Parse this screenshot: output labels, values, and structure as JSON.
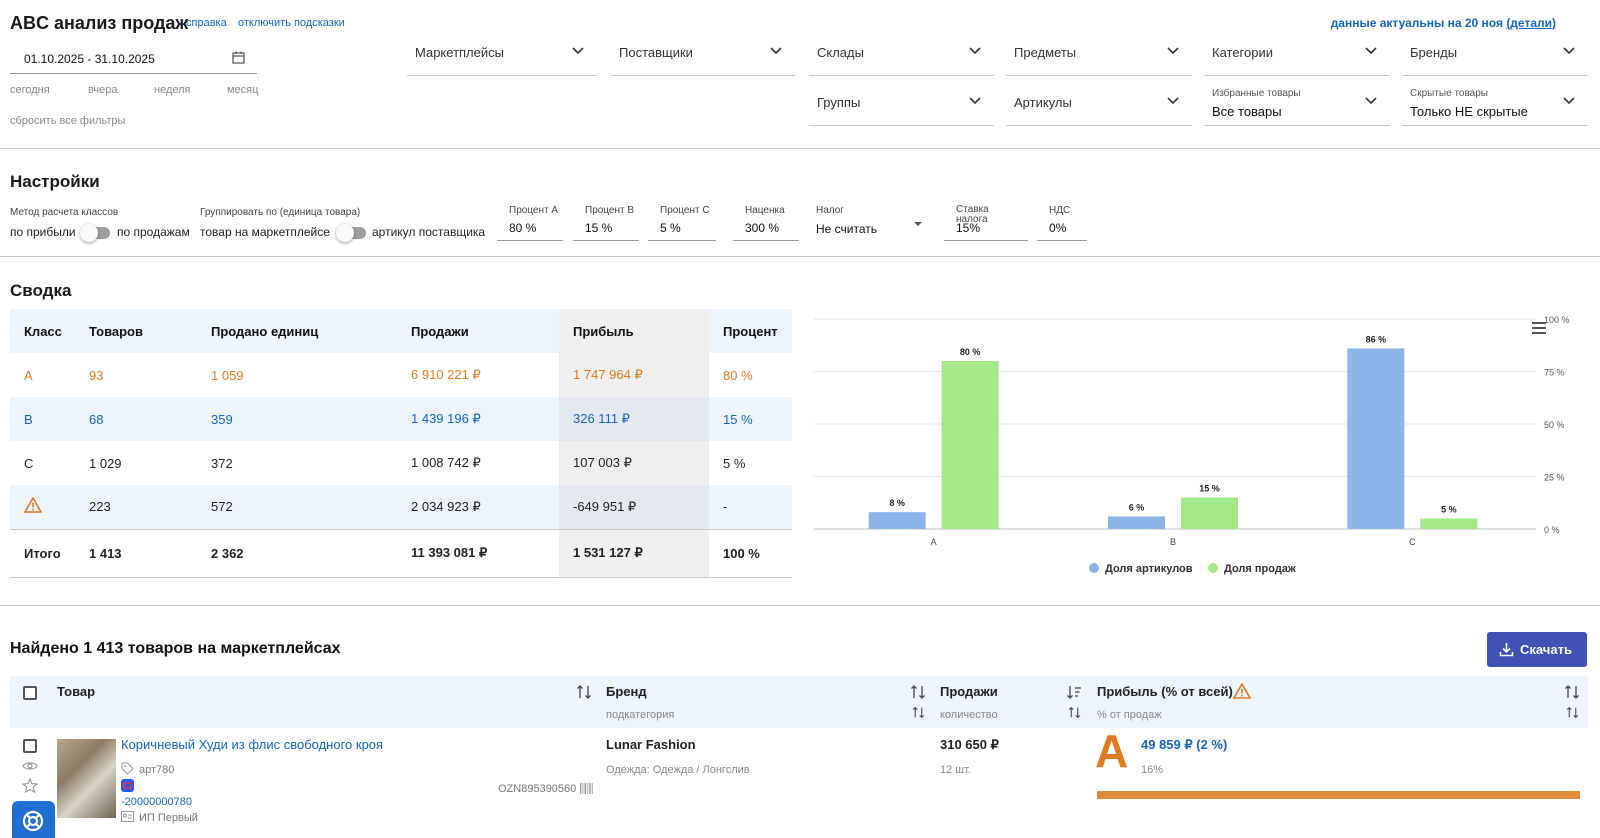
{
  "header": {
    "title": "ABC анализ продаж",
    "help_link": "справка",
    "hints_link": "отключить подсказки",
    "actuality_text": "данные актуальны на 20 ноя",
    "details_link": "(детали)"
  },
  "filters": {
    "date_range": "01.10.2025 - 31.10.2025",
    "quick": [
      "сегодня",
      "вчера",
      "неделя",
      "месяц"
    ],
    "reset": "сбросить все фильтры",
    "marketplaces": "Маркетплейсы",
    "suppliers": "Поставщики",
    "warehouses": "Склады",
    "items": "Предметы",
    "categories": "Категории",
    "brands": "Бренды",
    "groups": "Группы",
    "articles": "Артикулы",
    "favorites_label": "Избранные товары",
    "favorites_value": "Все товары",
    "hidden_label": "Скрытые товары",
    "hidden_value": "Только НЕ скрытые"
  },
  "settings": {
    "title": "Настройки",
    "method_label": "Метод расчета классов",
    "method_left": "по прибыли",
    "method_right": "по продажам",
    "group_label": "Группировать по (единица товара)",
    "group_left": "товар на маркетплейсе",
    "group_right": "артикул поставщика",
    "percent_a_label": "Процент A",
    "percent_a": "80 %",
    "percent_b_label": "Процент B",
    "percent_b": "15 %",
    "percent_c_label": "Процент C",
    "percent_c": "5 %",
    "markup_label": "Наценка",
    "markup": "300 %",
    "tax_label": "Налог",
    "tax": "Не считать",
    "tax_rate_label": "Ставка налога",
    "tax_rate": "15%",
    "vat_label": "НДС",
    "vat": "0%"
  },
  "summary": {
    "title": "Сводка",
    "headers": [
      "Класс",
      "Товаров",
      "Продано единиц",
      "Продажи",
      "Прибыль",
      "Процент"
    ],
    "rows": [
      {
        "cls": "A",
        "items": "93",
        "units": "1 059",
        "sales": "6 910 221 ₽",
        "profit": "1 747 964 ₽",
        "pct": "80 %"
      },
      {
        "cls": "B",
        "items": "68",
        "units": "359",
        "sales": "1 439 196 ₽",
        "profit": "326 111 ₽",
        "pct": "15 %"
      },
      {
        "cls": "C",
        "items": "1 029",
        "units": "372",
        "sales": "1 008 742 ₽",
        "profit": "107 003 ₽",
        "pct": "5 %"
      },
      {
        "cls": "",
        "items": "223",
        "units": "572",
        "sales": "2 034 923 ₽",
        "profit": "-649 951 ₽",
        "pct": "-"
      }
    ],
    "total": {
      "cls": "Итого",
      "items": "1 413",
      "units": "2 362",
      "sales": "11 393 081 ₽",
      "profit": "1 531 127 ₽",
      "pct": "100 %"
    }
  },
  "chart_data": {
    "type": "bar",
    "categories": [
      "A",
      "B",
      "C"
    ],
    "series": [
      {
        "name": "Доля артикулов",
        "color": "#8bb4e7",
        "values": [
          8,
          6,
          86
        ]
      },
      {
        "name": "Доля продаж",
        "color": "#a4e987",
        "values": [
          80,
          15,
          5
        ]
      }
    ],
    "value_labels": [
      [
        "8 %",
        "6 %",
        "86 %"
      ],
      [
        "80 %",
        "15 %",
        "5 %"
      ]
    ],
    "y_ticks": [
      "0 %",
      "25 %",
      "50 %",
      "75 %",
      "100 %"
    ],
    "ylim": [
      0,
      100
    ],
    "legend_position": "bottom"
  },
  "products": {
    "found_text": "Найдено 1 413 товаров на маркетплейсах",
    "download": "Скачать",
    "col_product": "Товар",
    "col_brand": "Бренд",
    "col_brand_sub": "подкатегория",
    "col_sales": "Продажи",
    "col_sales_sub": "количество",
    "col_profit": "Прибыль (% от всей)",
    "col_profit_sub": "% от продаж",
    "row": {
      "name": "Коричневый Худи из флис свободного кроя",
      "article": "арт780",
      "sku": "-20000000780",
      "seller": "ИП Первый",
      "ozon_code": "OZN895390560",
      "brand": "Lunar Fashion",
      "subcategory": "Одежда: Одежда / Лонгслив",
      "sales": "310 650 ₽",
      "qty": "12 шт.",
      "cls": "A",
      "profit": "49 859 ₽ (2 %)",
      "profit_pct": "16%"
    }
  }
}
